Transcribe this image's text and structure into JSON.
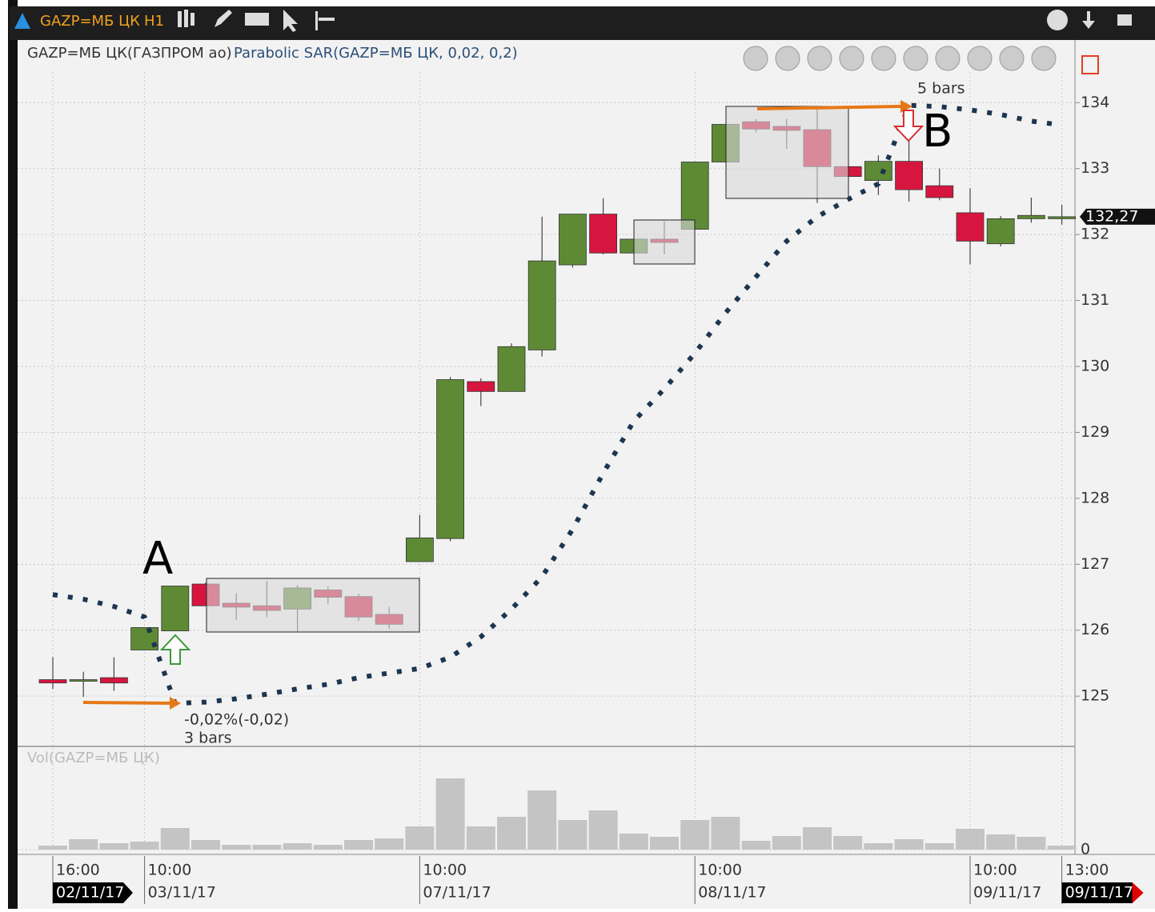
{
  "toolbar": {
    "symbol": "GAZP=МБ ЦК",
    "interval": "H1"
  },
  "chart_data": {
    "type": "candlestick",
    "legend": [
      "GAZP=МБ ЦК(ГАЗПРОМ ао)",
      "Parabolic SAR(GAZP=МБ ЦК, 0,02, 0,2)"
    ],
    "categories": [
      "16:00",
      null,
      null,
      "10:00",
      null,
      null,
      null,
      null,
      null,
      null,
      null,
      null,
      "10:00",
      null,
      null,
      null,
      null,
      null,
      null,
      null,
      null,
      "10:00",
      null,
      null,
      null,
      null,
      null,
      null,
      null,
      null,
      "10:00",
      null,
      null,
      "13:00"
    ],
    "dates": [
      "02/11/17",
      null,
      null,
      "03/11/17",
      null,
      null,
      null,
      null,
      null,
      null,
      null,
      null,
      "07/11/17",
      null,
      null,
      null,
      null,
      null,
      null,
      null,
      null,
      "08/11/17",
      null,
      null,
      null,
      null,
      null,
      null,
      null,
      null,
      "09/11/17",
      null,
      null,
      "09/11/17"
    ],
    "open": [
      125.25,
      125.25,
      125.28,
      125.7,
      125.99,
      126.7,
      126.41,
      126.37,
      126.32,
      126.61,
      126.51,
      126.24,
      127.04,
      127.39,
      129.77,
      129.62,
      130.25,
      131.54,
      132.31,
      131.72,
      131.93,
      132.08,
      133.1,
      133.71,
      133.64,
      133.59,
      133.03,
      132.82,
      133.11,
      132.74,
      132.33,
      131.86,
      132.24,
      132.24
    ],
    "high": [
      125.59,
      125.37,
      125.59,
      126.04,
      126.67,
      126.72,
      126.56,
      126.75,
      126.68,
      126.66,
      126.55,
      126.35,
      127.75,
      129.84,
      129.82,
      130.35,
      132.27,
      132.31,
      132.55,
      131.93,
      132.2,
      133.1,
      133.67,
      133.75,
      133.75,
      133.95,
      133.03,
      133.2,
      133.5,
      133.0,
      132.7,
      132.28,
      132.56,
      132.45
    ],
    "low": [
      125.11,
      124.99,
      125.08,
      125.7,
      125.99,
      126.37,
      126.16,
      126.2,
      125.97,
      126.4,
      126.14,
      126.02,
      127.04,
      127.35,
      129.4,
      129.62,
      130.15,
      131.5,
      131.7,
      131.72,
      131.7,
      132.08,
      133.1,
      133.55,
      133.3,
      132.48,
      132.88,
      132.6,
      132.5,
      132.52,
      131.55,
      131.82,
      132.18,
      132.15
    ],
    "close": [
      125.2,
      125.25,
      125.2,
      126.04,
      126.67,
      126.37,
      126.35,
      126.3,
      126.64,
      126.5,
      126.2,
      126.09,
      127.4,
      129.8,
      129.62,
      130.3,
      131.6,
      132.31,
      131.72,
      131.93,
      131.88,
      133.1,
      133.67,
      133.6,
      133.58,
      133.03,
      132.88,
      133.11,
      132.68,
      132.56,
      131.9,
      132.24,
      132.29,
      132.27
    ],
    "sar": [
      126.54,
      126.47,
      126.36,
      126.2,
      124.89,
      124.91,
      124.96,
      125.03,
      125.11,
      125.18,
      125.28,
      125.35,
      125.42,
      125.59,
      125.9,
      126.32,
      126.81,
      127.53,
      128.38,
      129.17,
      129.66,
      130.2,
      130.81,
      131.36,
      131.9,
      132.27,
      132.53,
      132.77,
      133.96,
      133.94,
      133.89,
      133.82,
      133.72,
      133.66
    ],
    "up_color": "#5e8a35",
    "down_color": "#d6163f",
    "sar_color": "#1c3550",
    "ylim": [
      124.25,
      134.95
    ],
    "yticks": [
      125,
      126,
      127,
      128,
      129,
      130,
      131,
      132,
      133,
      134
    ],
    "last_price": {
      "value": 132.27,
      "label": "132,27"
    },
    "grid": true,
    "volume_title": "Vol(GAZP=МБ ЦК)",
    "volume": [
      5,
      13,
      8,
      10,
      27,
      12,
      6,
      6,
      8,
      6,
      12,
      14,
      29,
      89,
      29,
      41,
      74,
      37,
      49,
      20,
      16,
      37,
      41,
      11,
      17,
      28,
      17,
      8,
      13,
      8,
      26,
      19,
      16,
      5
    ],
    "volume_color": "#c4c4c4",
    "vlim": [
      0,
      100
    ],
    "vticks": [
      0
    ],
    "annotations": {
      "a": "A",
      "b": "B",
      "b_bars": "5 bars",
      "a_change": "-0,02%(-0,02)",
      "a_bars": "3 bars"
    }
  }
}
